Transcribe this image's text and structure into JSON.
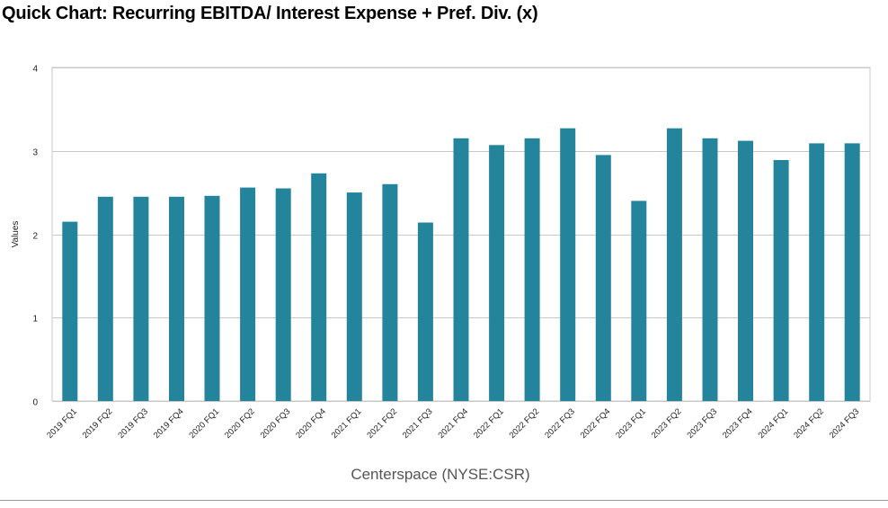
{
  "chart_data": {
    "type": "bar",
    "title": "Quick Chart: Recurring EBITDA/ Interest Expense + Pref. Div. (x)",
    "xlabel": "Centerspace (NYSE:CSR)",
    "ylabel": "Values",
    "ylim": [
      0,
      4
    ],
    "yticks": [
      0,
      1,
      2,
      3,
      4
    ],
    "grid": true,
    "bar_color": "#24849c",
    "categories": [
      "2019 FQ1",
      "2019 FQ2",
      "2019 FQ3",
      "2019 FQ4",
      "2020 FQ1",
      "2020 FQ2",
      "2020 FQ3",
      "2020 FQ4",
      "2021 FQ1",
      "2021 FQ2",
      "2021 FQ3",
      "2021 FQ4",
      "2022 FQ1",
      "2022 FQ2",
      "2022 FQ3",
      "2022 FQ4",
      "2023 FQ1",
      "2023 FQ2",
      "2023 FQ3",
      "2023 FQ4",
      "2024 FQ1",
      "2024 FQ2",
      "2024 FQ3"
    ],
    "values": [
      2.15,
      2.45,
      2.45,
      2.45,
      2.46,
      2.56,
      2.55,
      2.73,
      2.5,
      2.6,
      2.14,
      3.15,
      3.07,
      3.15,
      3.27,
      2.95,
      2.4,
      3.27,
      3.15,
      3.12,
      2.89,
      3.09,
      3.09
    ]
  }
}
